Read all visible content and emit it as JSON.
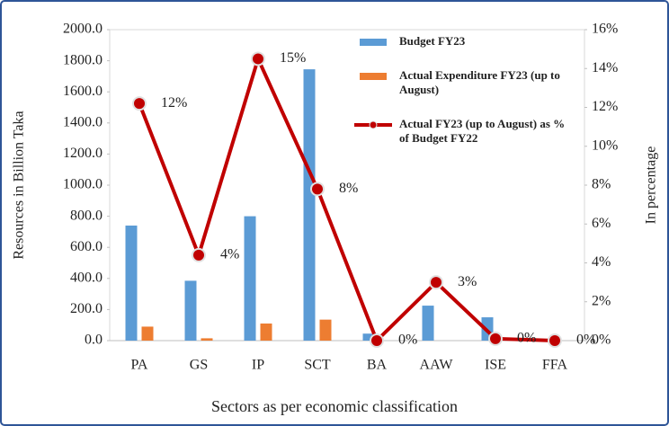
{
  "chart_data": {
    "type": "bar",
    "categories": [
      "PA",
      "GS",
      "IP",
      "SCT",
      "BA",
      "AAW",
      "ISE",
      "FFA"
    ],
    "series": [
      {
        "name": "Budget FY23",
        "color": "#5b9bd5",
        "values": [
          740,
          385,
          800,
          1745,
          45,
          225,
          150,
          0
        ]
      },
      {
        "name": "Actual Expenditure FY23 (up to August)",
        "color": "#ed7d31",
        "values": [
          90,
          15,
          110,
          135,
          0,
          0,
          0,
          0
        ]
      },
      {
        "name": "Actual FY23 (up to August) as % of Budget FY22",
        "color": "#c00000",
        "type": "line",
        "axis": "y2",
        "values": [
          12.2,
          4.4,
          14.5,
          7.8,
          0,
          3,
          0.1,
          0
        ],
        "value_labels": [
          "12%",
          "4%",
          "15%",
          "8%",
          "0%",
          "3%",
          "0%",
          "0%"
        ]
      }
    ],
    "ylabel": "Resources in Billion Taka",
    "y2label": "In percentage",
    "xlabel": "Sectors as per economic classification",
    "ylim": [
      0,
      2000
    ],
    "yticks": [
      {
        "value": 0,
        "label": "0.0"
      },
      {
        "value": 200,
        "label": "200.0"
      },
      {
        "value": 400,
        "label": "400.0"
      },
      {
        "value": 600,
        "label": "600.0"
      },
      {
        "value": 800,
        "label": "800.0"
      },
      {
        "value": 1000,
        "label": "1000.0"
      },
      {
        "value": 1200,
        "label": "1200.0"
      },
      {
        "value": 1400,
        "label": "1400.0"
      },
      {
        "value": 1600,
        "label": "1600.0"
      },
      {
        "value": 1800,
        "label": "1800.0"
      },
      {
        "value": 2000,
        "label": "2000.0"
      }
    ],
    "y2lim": [
      0,
      16
    ],
    "y2ticks": [
      {
        "value": 0,
        "label": "0%"
      },
      {
        "value": 2,
        "label": "2%"
      },
      {
        "value": 4,
        "label": "4%"
      },
      {
        "value": 6,
        "label": "6%"
      },
      {
        "value": 8,
        "label": "8%"
      },
      {
        "value": 10,
        "label": "10%"
      },
      {
        "value": 12,
        "label": "12%"
      },
      {
        "value": 14,
        "label": "14%"
      },
      {
        "value": 16,
        "label": "16%"
      }
    ],
    "grid": false
  }
}
